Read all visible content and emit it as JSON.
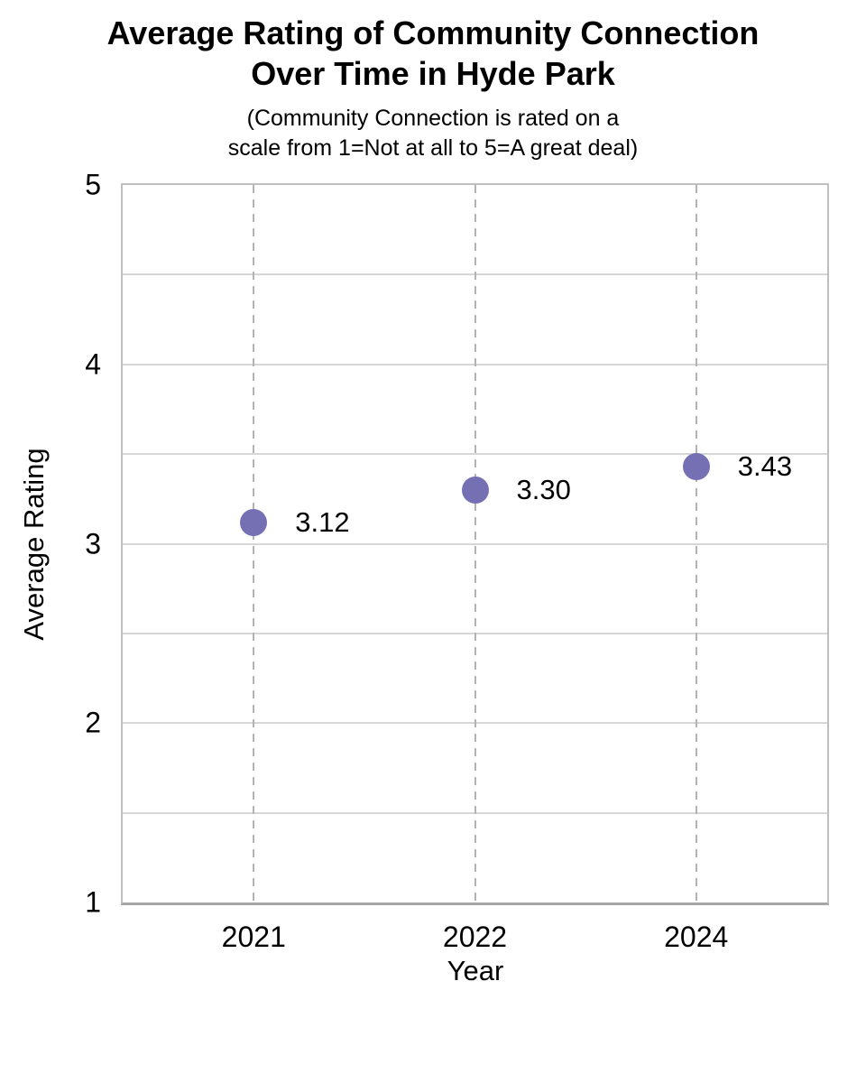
{
  "chart_data": {
    "type": "scatter",
    "title": "Average Rating of Community Connection Over Time in Hyde Park",
    "title_lines": [
      "Average Rating of Community Connection",
      "Over Time in Hyde Park"
    ],
    "subtitle": "(Community Connection is rated on a scale from 1=Not at all to 5=A great deal)",
    "subtitle_lines": [
      "(Community Connection is rated on a",
      "scale from 1=Not at all to 5=A great deal)"
    ],
    "categories": [
      "2021",
      "2022",
      "2024"
    ],
    "series": [
      {
        "name": "Average Rating",
        "values": [
          3.12,
          3.3,
          3.43
        ]
      }
    ],
    "point_labels": [
      "3.12",
      "3.30",
      "3.43"
    ],
    "xlabel": "Year",
    "ylabel": "Average Rating",
    "ylim": [
      1,
      5
    ],
    "y_tick_values": [
      5,
      4,
      3,
      2,
      1
    ],
    "y_tick_labels": [
      "5",
      "4",
      "3",
      "2",
      "1"
    ],
    "y_grid_step": 0.5,
    "grid": {
      "horizontal": "solid",
      "vertical": "dashed-at-categories"
    },
    "legend_position": "none",
    "colors": {
      "point": "#7570B3",
      "grid_horizontal": "#D6D6D6",
      "grid_vertical": "#B3B3B3",
      "plot_border": "#BFBFBF",
      "axis_line": "#A6A6A6",
      "text": "#000000"
    }
  }
}
